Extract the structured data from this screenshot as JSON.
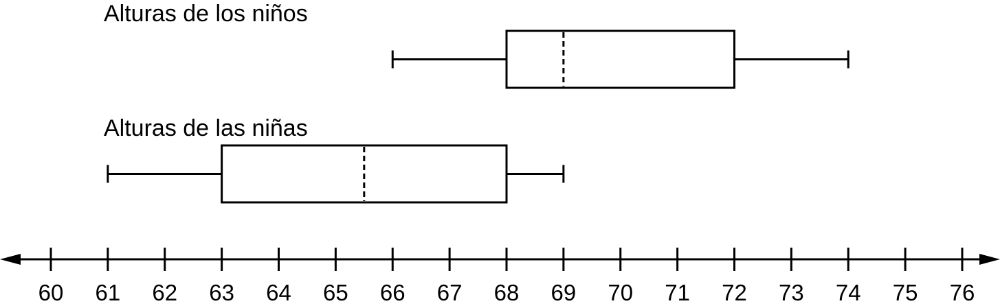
{
  "chart_data": {
    "type": "boxplot",
    "title": "",
    "xlabel": "",
    "ylabel": "",
    "xlim": [
      60,
      76
    ],
    "ticks": [
      60,
      61,
      62,
      63,
      64,
      65,
      66,
      67,
      68,
      69,
      70,
      71,
      72,
      73,
      74,
      75,
      76
    ],
    "tick_labels": [
      "60",
      "61",
      "62",
      "63",
      "64",
      "65",
      "66",
      "67",
      "68",
      "69",
      "70",
      "71",
      "72",
      "73",
      "74",
      "75",
      "76"
    ],
    "series": [
      {
        "name": "Alturas de los niños",
        "min": 66,
        "q1": 68,
        "median": 69,
        "q3": 72,
        "max": 74
      },
      {
        "name": "Alturas de las niñas",
        "min": 61,
        "q1": 63,
        "median": 65.5,
        "q3": 68,
        "max": 69
      }
    ],
    "colors": {
      "stroke": "#000000",
      "background": "#ffffff"
    }
  }
}
